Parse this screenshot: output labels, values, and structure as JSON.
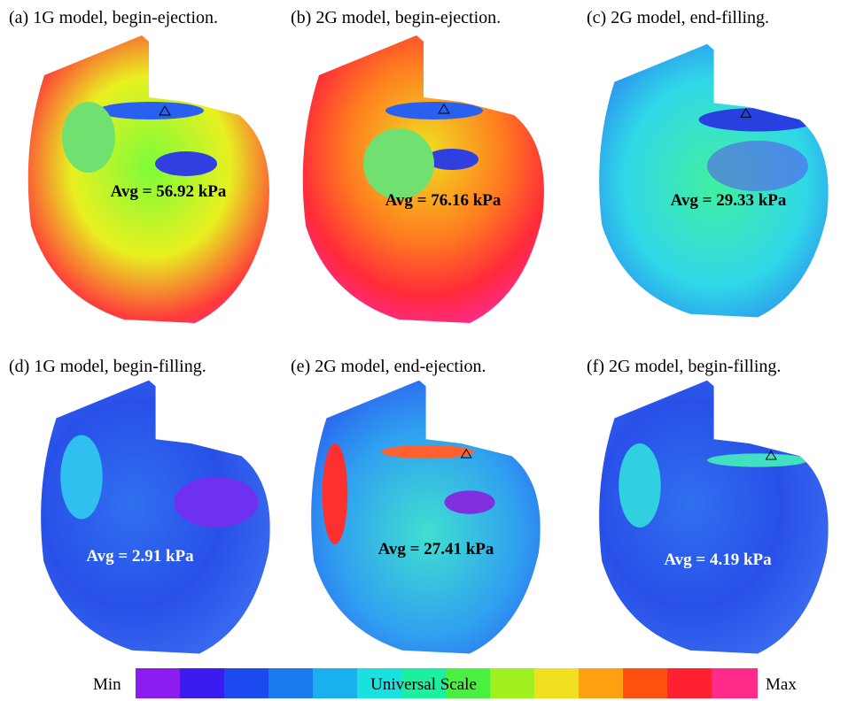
{
  "panels": [
    {
      "caption": "(a) 1G model, begin-ejection.",
      "average": "Avg = 56.92 kPa"
    },
    {
      "caption": "(b) 2G model, begin-ejection.",
      "average": "Avg = 76.16 kPa"
    },
    {
      "caption": "(c) 2G model, end-filling.",
      "average": "Avg = 29.33 kPa"
    },
    {
      "caption": "(d) 1G model, begin-filling.",
      "average": "Avg = 2.91 kPa"
    },
    {
      "caption": "(e) 2G model, end-ejection.",
      "average": "Avg = 27.41 kPa"
    },
    {
      "caption": "(f) 2G model, begin-filling.",
      "average": "Avg = 4.19 kPa"
    }
  ],
  "colorbar": {
    "title": "Universal Scale",
    "min_label": "Min",
    "max_label": "Max"
  }
}
